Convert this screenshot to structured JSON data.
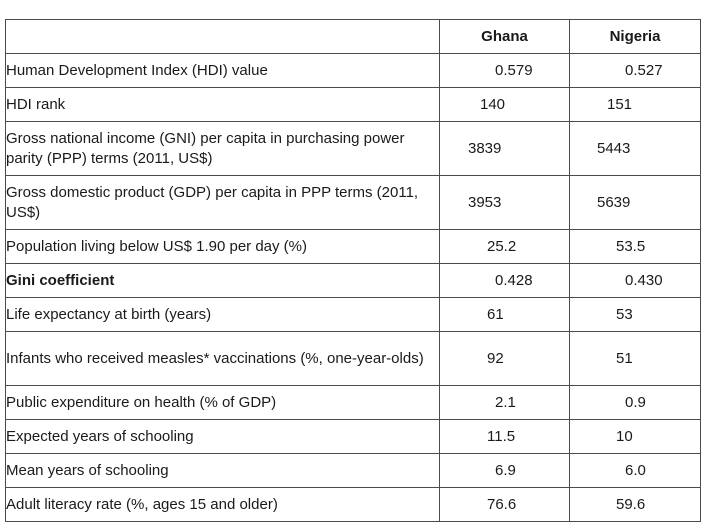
{
  "table": {
    "columns": [
      "",
      "Ghana",
      "Nigeria"
    ],
    "rows": [
      {
        "label": "Human Development Index (HDI) value",
        "ghana": "0.579",
        "nigeria": "0.527"
      },
      {
        "label": "HDI rank",
        "ghana": "140",
        "nigeria": "151"
      },
      {
        "label": "Gross national income (GNI) per capita in purchasing power parity (PPP) terms (2011, US$)",
        "ghana": "3839",
        "nigeria": "5443"
      },
      {
        "label": "Gross domestic product (GDP) per capita in PPP terms (2011, US$)",
        "ghana": "3953",
        "nigeria": "5639"
      },
      {
        "label": "Population living below US$ 1.90 per day (%)",
        "ghana": "25.2",
        "nigeria": "53.5"
      },
      {
        "label": "Gini coefficient",
        "ghana": "0.428",
        "nigeria": "0.430"
      },
      {
        "label": "Life expectancy at birth (years)",
        "ghana": "61",
        "nigeria": "53"
      },
      {
        "label": "Infants who received measles* vaccinations (%, one-year-olds)",
        "ghana": "92",
        "nigeria": "51"
      },
      {
        "label": "Public expenditure on health (% of GDP)",
        "ghana": "2.1",
        "nigeria": "0.9"
      },
      {
        "label": "Expected years of schooling",
        "ghana": "11.5",
        "nigeria": "10"
      },
      {
        "label": "Mean years of schooling",
        "ghana": "6.9",
        "nigeria": "6.0"
      },
      {
        "label": "Adult literacy rate (%, ages 15 and older)",
        "ghana": "76.6",
        "nigeria": "59.6"
      }
    ]
  }
}
